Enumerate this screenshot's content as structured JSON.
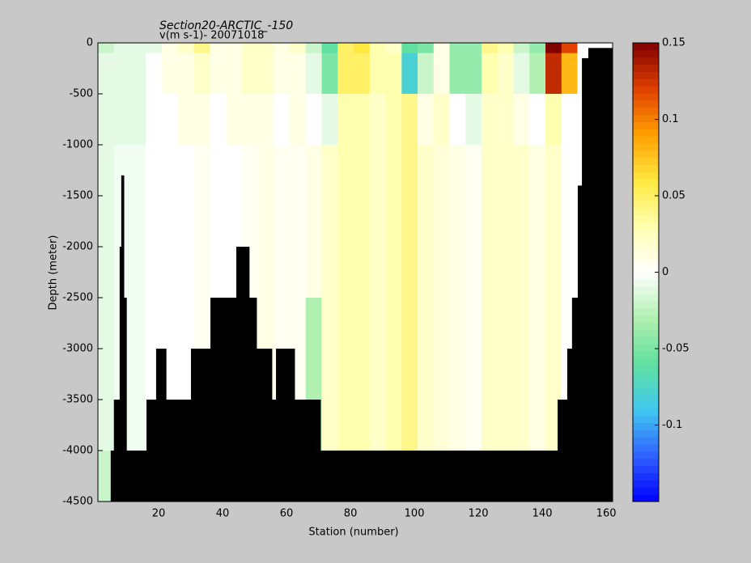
{
  "chart_data": {
    "type": "heatmap",
    "title": "Section20-ARCTIC_-150",
    "subtitle": "v(m s-1)- 20071018",
    "x_label": "Station (number)",
    "y_label": "Depth (meter)",
    "xlim": [
      1,
      162
    ],
    "ylim": [
      -4500,
      0
    ],
    "xticks": [
      20,
      40,
      60,
      80,
      100,
      120,
      140,
      160
    ],
    "yticks": [
      0,
      -500,
      -1000,
      -1500,
      -2000,
      -2500,
      -3000,
      -3500,
      -4000,
      -4500
    ],
    "clim": [
      -0.15,
      0.15
    ],
    "colorbar_ticks": [
      -0.1,
      -0.05,
      0,
      0.05,
      0.1,
      0.15
    ],
    "colormap": [
      "#0000ff",
      "#3060ff",
      "#40c8f0",
      "#60e0a0",
      "#b0f0b0",
      "#ffffff",
      "#ffffb0",
      "#ffe840",
      "#ffa000",
      "#e04000",
      "#800000"
    ],
    "x_bins": [
      1,
      6,
      11,
      16,
      21,
      26,
      31,
      36,
      41,
      46,
      51,
      56,
      61,
      66,
      71,
      76,
      81,
      86,
      91,
      96,
      101,
      106,
      111,
      116,
      121,
      126,
      131,
      136,
      141,
      146,
      151,
      156,
      161
    ],
    "y_bins": [
      0,
      -100,
      -500,
      -1000,
      -1500,
      -2000,
      -2500,
      -3000,
      -3500,
      -4000,
      -4500
    ],
    "values": [
      [
        -0.02,
        -0.01,
        -0.01,
        -0.01,
        0.01,
        0.02,
        0.04,
        0.01,
        0.01,
        0.02,
        0.02,
        0.01,
        0.02,
        -0.02,
        -0.06,
        0.05,
        0.06,
        0.03,
        0.02,
        -0.06,
        -0.05,
        0.01,
        -0.04,
        -0.04,
        0.04,
        0.03,
        -0.02,
        -0.04,
        0.15,
        0.12,
        0,
        0
      ],
      [
        -0.01,
        -0.01,
        -0.01,
        0,
        0.01,
        0.01,
        0.02,
        0.01,
        0.01,
        0.02,
        0.02,
        0.01,
        0.01,
        -0.01,
        -0.05,
        0.05,
        0.05,
        0.03,
        0.03,
        -0.08,
        -0.02,
        0.01,
        -0.04,
        -0.04,
        0.03,
        0.02,
        -0.01,
        -0.03,
        0.13,
        0.08,
        0,
        0
      ],
      [
        -0.01,
        -0.01,
        -0.01,
        0,
        0,
        0.01,
        0.01,
        0,
        0.01,
        0.01,
        0.01,
        0,
        0.01,
        0,
        -0.01,
        0.03,
        0.03,
        0.02,
        0.03,
        0.04,
        0.01,
        0.02,
        0,
        -0.01,
        0.02,
        0.02,
        0.01,
        0,
        0.03,
        0,
        0,
        0
      ],
      [
        -0.01,
        -0.005,
        -0.005,
        0,
        0,
        0,
        0.005,
        0,
        0,
        0.005,
        0.01,
        0.005,
        0.005,
        0.01,
        0.02,
        0.03,
        0.03,
        0.02,
        0.03,
        0.04,
        0.02,
        0.015,
        0.01,
        0.005,
        0.02,
        0.02,
        0.02,
        0.01,
        0.02,
        0,
        0,
        0
      ],
      [
        -0.01,
        -0.005,
        -0.005,
        0,
        0,
        0,
        0.005,
        0,
        0,
        0.005,
        0.01,
        0.005,
        0.005,
        0.01,
        0.02,
        0.03,
        0.03,
        0.02,
        0.03,
        0.04,
        0.02,
        0.015,
        0.01,
        0.005,
        0.02,
        0.02,
        0.02,
        0.01,
        0.02,
        0,
        0,
        0
      ],
      [
        -0.01,
        -0.005,
        -0.005,
        0,
        0,
        0,
        0.005,
        0,
        0,
        0.005,
        0.01,
        0.005,
        0.005,
        0.01,
        0.02,
        0.03,
        0.03,
        0.02,
        0.03,
        0.04,
        0.02,
        0.015,
        0.01,
        0.005,
        0.02,
        0.02,
        0.02,
        0.01,
        0.02,
        0,
        0,
        0
      ],
      [
        -0.01,
        -0.005,
        -0.005,
        0,
        0,
        0,
        0.005,
        0,
        0,
        0.005,
        0.01,
        0.005,
        0.005,
        -0.03,
        0.02,
        0.03,
        0.03,
        0.02,
        0.03,
        0.04,
        0.02,
        0.015,
        0.01,
        0.005,
        0.02,
        0.02,
        0.02,
        0.01,
        0.02,
        0,
        0,
        0
      ],
      [
        -0.01,
        -0.005,
        -0.005,
        0,
        0,
        0,
        0.005,
        0,
        0,
        0.005,
        0.01,
        0.005,
        0.005,
        -0.03,
        0.02,
        0.03,
        0.03,
        0.02,
        0.03,
        0.04,
        0.02,
        0.015,
        0.01,
        0.005,
        0.02,
        0.02,
        0.02,
        0.01,
        0.02,
        0,
        0,
        0
      ],
      [
        -0.01,
        -0.005,
        -0.005,
        0,
        0,
        0,
        0.005,
        0,
        0,
        0.005,
        0.01,
        0.005,
        0.005,
        -0.03,
        0.02,
        0.03,
        0.03,
        0.02,
        0.03,
        0.04,
        0.02,
        0.015,
        0.01,
        0.005,
        0.02,
        0.02,
        0.02,
        0.01,
        0.02,
        0,
        0,
        0
      ],
      [
        -0.02,
        -0.005,
        -0.005,
        0,
        0,
        0,
        0.005,
        0,
        0,
        0.005,
        0.01,
        0.005,
        0.005,
        -0.03,
        0.02,
        0.03,
        0.03,
        0.02,
        0.03,
        0.04,
        0.02,
        0.015,
        0.01,
        0.005,
        0.02,
        0.02,
        0.02,
        0.01,
        0.02,
        0,
        0,
        0
      ]
    ],
    "bottom": {
      "color": "#000000",
      "x": [
        5,
        6,
        7.8,
        8.3,
        9.1,
        9.9,
        16.2,
        19.2,
        22.3,
        30.1,
        36.2,
        44.3,
        48.3,
        50.6,
        55.4,
        56.7,
        62.5,
        70.6,
        144.8,
        147.8,
        149.3,
        151.1,
        152.4,
        154.4
      ],
      "depth": [
        -4000,
        -3500,
        -2000,
        -1300,
        -2500,
        -4000,
        -3500,
        -3000,
        -3500,
        -3000,
        -2500,
        -2000,
        -2500,
        -3000,
        -3500,
        -3000,
        -3500,
        -4000,
        -3500,
        -3000,
        -2500,
        -1400,
        -150,
        -50
      ]
    }
  }
}
